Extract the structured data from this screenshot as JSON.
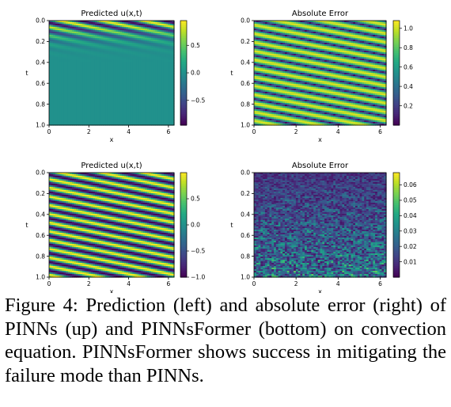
{
  "caption": {
    "label": "Figure 4:",
    "text": "  Prediction (left) and absolute error (right) of PINNs (up) and PINNsFormer (bottom) on convection equation. PINNsFormer shows success in mitigating the failure mode than PINNs."
  },
  "chart_data": [
    {
      "type": "heatmap",
      "id": "pinns-prediction",
      "title": "Predicted u(x,t)",
      "xlabel": "x",
      "ylabel": "t",
      "xticks": [
        "0",
        "2",
        "4",
        "6"
      ],
      "yticks": [
        "0.0",
        "0.2",
        "0.4",
        "0.6",
        "0.8",
        "1.0"
      ],
      "colorbar_ticks": [
        "0.5",
        "0.0",
        "−0.5"
      ],
      "colorbar_values": [
        0.5,
        0.0,
        -0.5
      ],
      "vmin": -0.95,
      "vmax": 0.95,
      "pattern": "waves_decaying",
      "colormap": "viridis"
    },
    {
      "type": "heatmap",
      "id": "pinns-error",
      "title": "Absolute Error",
      "xlabel": "x",
      "ylabel": "t",
      "xticks": [
        "0",
        "2",
        "4",
        "6"
      ],
      "yticks": [
        "0.0",
        "0.2",
        "0.4",
        "0.6",
        "0.8",
        "1.0"
      ],
      "colorbar_ticks": [
        "1.0",
        "0.8",
        "0.6",
        "0.4",
        "0.2"
      ],
      "colorbar_values": [
        1.0,
        0.8,
        0.6,
        0.4,
        0.2
      ],
      "vmin": 0.0,
      "vmax": 1.08,
      "pattern": "abs_waves",
      "colormap": "viridis"
    },
    {
      "type": "heatmap",
      "id": "pinnsformer-prediction",
      "title": "Predicted u(x,t)",
      "xlabel": "x",
      "ylabel": "t",
      "xticks": [
        "0",
        "2",
        "4",
        "6"
      ],
      "yticks": [
        "0.0",
        "0.2",
        "0.4",
        "0.6",
        "0.8",
        "1.0"
      ],
      "colorbar_ticks": [
        "0.5",
        "0.0",
        "−0.5",
        "−1.0"
      ],
      "colorbar_values": [
        0.5,
        0.0,
        -0.5,
        -1.0
      ],
      "vmin": -1.0,
      "vmax": 1.0,
      "pattern": "waves",
      "colormap": "viridis"
    },
    {
      "type": "heatmap",
      "id": "pinnsformer-error",
      "title": "Absolute Error",
      "xlabel": "x",
      "ylabel": "t",
      "xticks": [
        "0",
        "2",
        "4",
        "6"
      ],
      "yticks": [
        "0.0",
        "0.2",
        "0.4",
        "0.6",
        "0.8",
        "1.0"
      ],
      "colorbar_ticks": [
        "0.06",
        "0.05",
        "0.04",
        "0.03",
        "0.02",
        "0.01"
      ],
      "colorbar_values": [
        0.06,
        0.05,
        0.04,
        0.03,
        0.02,
        0.01
      ],
      "vmin": 0.0,
      "vmax": 0.068,
      "pattern": "noise",
      "colormap": "viridis"
    }
  ]
}
